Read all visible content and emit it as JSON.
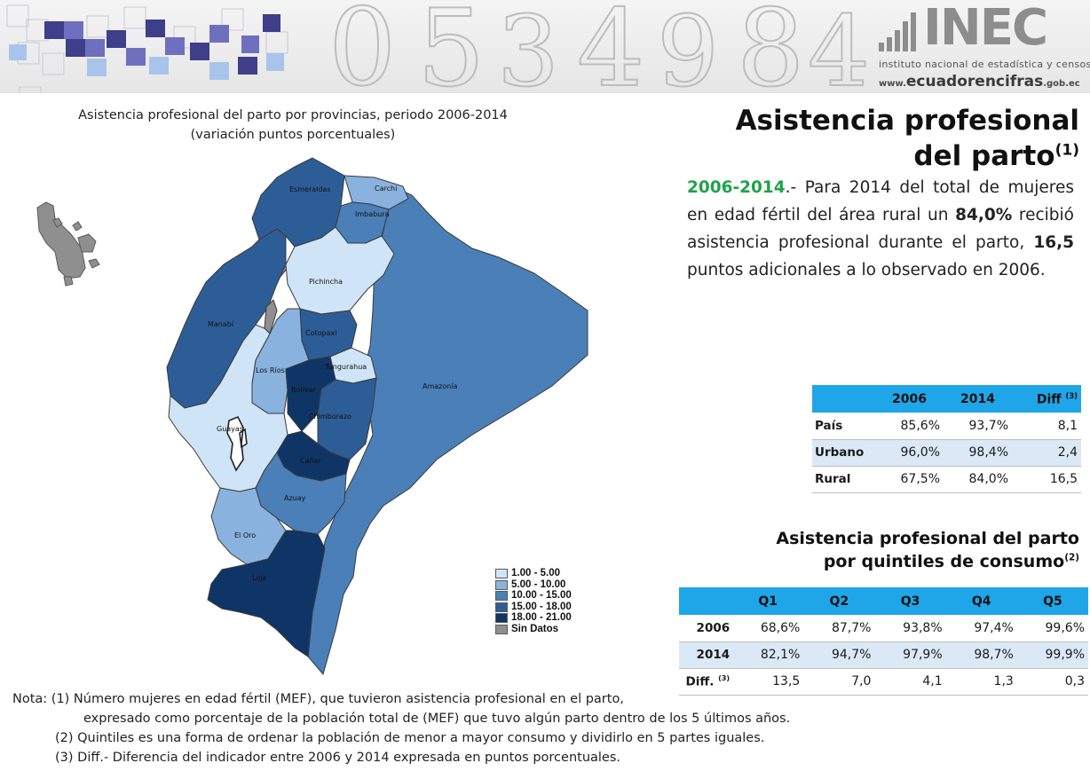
{
  "header": {
    "logo_text": "INEC",
    "logo_subtitle": "instituto nacional de estadística y censos",
    "logo_web_prefix": "www.",
    "logo_web_main": "ecuadorencifras",
    "logo_web_suffix": ".gob.ec"
  },
  "title": {
    "line1": "Asistencia profesional",
    "line2": "del parto",
    "sup": "(1)"
  },
  "map": {
    "title_line1": "Asistencia profesional  del parto por provincias, periodo 2006-2014",
    "title_line2": "(variación puntos porcentuales)",
    "provinces": {
      "esmeraldas": "Esmeraldas",
      "carchi": "Carchi",
      "imbabura": "Imbabura",
      "pichincha": "Pichincha",
      "manabi": "Manabí",
      "cotopaxi": "Cotopaxi",
      "los_rios": "Los Ríos",
      "tungurahua": "Tungurahua",
      "bolivar": "Bolívar",
      "amazonia": "Amazonía",
      "guayas": "Guayas",
      "chimborazo": "Chimborazo",
      "canar": "Cañar",
      "azuay": "Azuay",
      "el_oro": "El Oro",
      "loja": "Loja"
    },
    "legend": [
      {
        "label": "1.00 - 5.00",
        "color": "#cfe4f7"
      },
      {
        "label": "5.00 - 10.00",
        "color": "#89b2de"
      },
      {
        "label": "10.00 - 15.00",
        "color": "#4a7fb8"
      },
      {
        "label": "15.00 - 18.00",
        "color": "#2d5d96"
      },
      {
        "label": "18.00 - 21.00",
        "color": "#0f3566"
      },
      {
        "label": "Sin Datos",
        "color": "#8f8f8f"
      }
    ]
  },
  "summary": {
    "year_range": "2006-2014",
    "text_a": ".- Para 2014 del total de mujeres en edad fértil del área rural un ",
    "value_1": "84,0%",
    "text_b": " recibió asistencia profesional durante el parto, ",
    "value_2": "16,5",
    "text_c": " puntos adicionales a lo observado en 2006."
  },
  "table_area": {
    "headers": [
      "",
      "2006",
      "2014",
      "Diff"
    ],
    "diff_sup": "(3)",
    "rows": [
      {
        "label": "País",
        "v2006": "85,6%",
        "v2014": "93,7%",
        "diff": "8,1"
      },
      {
        "label": "Urbano",
        "v2006": "96,0%",
        "v2014": "98,4%",
        "diff": "2,4"
      },
      {
        "label": "Rural",
        "v2006": "67,5%",
        "v2014": "84,0%",
        "diff": "16,5"
      }
    ]
  },
  "quintiles": {
    "title_line1": "Asistencia profesional del parto",
    "title_line2": "por quintiles de consumo",
    "title_sup": "(2)",
    "headers": [
      "Q1",
      "Q2",
      "Q3",
      "Q4",
      "Q5"
    ],
    "rows": [
      {
        "label": "2006",
        "values": [
          "68,6%",
          "87,7%",
          "93,8%",
          "97,4%",
          "99,6%"
        ]
      },
      {
        "label": "2014",
        "values": [
          "82,1%",
          "94,7%",
          "97,9%",
          "98,7%",
          "99,9%"
        ]
      },
      {
        "label": "Diff.",
        "sup": "(3)",
        "values": [
          "13,5",
          "7,0",
          "4,1",
          "1,3",
          "0,3"
        ]
      }
    ]
  },
  "notes": {
    "n1": "Nota: (1) Número mujeres en edad fértil (MEF), que tuvieron asistencia profesional en el parto,",
    "n1_cont": "expresado como porcentaje de la población total de (MEF) que tuvo algún parto dentro de los 5 últimos años.",
    "n2": "(2) Quintiles es una forma de ordenar la población de menor a mayor consumo y dividirlo en 5 partes iguales.",
    "n3": "(3) Diff.- Diferencia del indicador entre 2006 y 2014 expresada en puntos porcentuales."
  }
}
